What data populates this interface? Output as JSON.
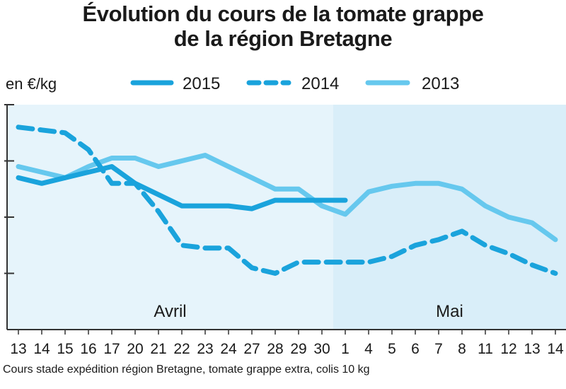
{
  "chart_data": {
    "type": "line",
    "title": "Évolution du cours de la tomate grappe\nde la région Bretagne",
    "ylabel": "en €/kg",
    "source": "Cours stade expédition région Bretagne, tomate grappe extra, colis 10 kg",
    "x": [
      "13",
      "14",
      "15",
      "16",
      "17",
      "20",
      "21",
      "22",
      "23",
      "24",
      "27",
      "28",
      "29",
      "30",
      "1",
      "4",
      "5",
      "6",
      "7",
      "8",
      "11",
      "12",
      "13",
      "14"
    ],
    "months": [
      {
        "label": "Avril",
        "start": "13",
        "end": "30"
      },
      {
        "label": "Mai",
        "start": "1",
        "end": "14"
      }
    ],
    "ylim": [
      0,
      4
    ],
    "yticks": [
      1,
      2,
      3,
      4
    ],
    "ytick_labels_visible": false,
    "grid": false,
    "legend_position": "top",
    "colors": {
      "2015": "#1aa3dc",
      "2014": "#1aa3dc",
      "2013": "#66c8ee",
      "band_avril": "#e6f4fb",
      "band_mai": "#d9eef9",
      "axis": "#333333"
    },
    "series": [
      {
        "name": "2015",
        "style": "solid",
        "values": [
          2.7,
          2.6,
          2.7,
          2.8,
          2.9,
          2.6,
          2.4,
          2.2,
          2.2,
          2.2,
          2.15,
          2.3,
          2.3,
          2.3,
          2.3,
          null,
          null,
          null,
          null,
          null,
          null,
          null,
          null,
          null
        ]
      },
      {
        "name": "2014",
        "style": "dashed",
        "values": [
          3.6,
          3.55,
          3.5,
          3.2,
          2.6,
          2.6,
          2.1,
          1.5,
          1.45,
          1.45,
          1.1,
          1.0,
          1.2,
          1.2,
          1.2,
          1.2,
          1.3,
          1.5,
          1.6,
          1.75,
          1.5,
          1.35,
          1.15,
          1.0
        ]
      },
      {
        "name": "2013",
        "style": "solid-light",
        "values": [
          2.9,
          2.8,
          2.7,
          2.9,
          3.05,
          3.05,
          2.9,
          3.0,
          3.1,
          2.9,
          2.7,
          2.5,
          2.5,
          2.2,
          2.05,
          2.45,
          2.55,
          2.6,
          2.6,
          2.5,
          2.2,
          2.0,
          1.9,
          1.6
        ]
      }
    ]
  }
}
